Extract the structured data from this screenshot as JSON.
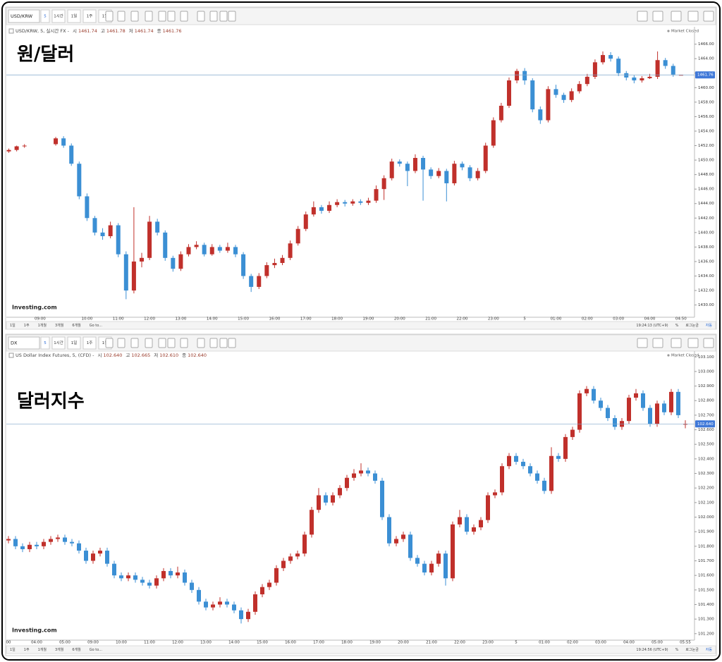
{
  "chart_data": [
    {
      "type": "candlestick",
      "title": "원/달러",
      "symbol": "USD/KRW",
      "toolbar": [
        "5",
        "1시간",
        "1일",
        "1주",
        "1월"
      ],
      "header": "USD/KRW, 5, 실시간 FX -",
      "ohlc_names": [
        "시",
        "고",
        "저",
        "종"
      ],
      "ohlc_labels": [
        "1461.74",
        "1461.78",
        "1461.74",
        "1461.76"
      ],
      "status": "Market Closed",
      "logo": "Investing.com",
      "last_price_label": "1461.76",
      "bottom_left": [
        "1일",
        "1주",
        "1개월",
        "3개월",
        "6개월",
        "Go to..."
      ],
      "bottom_right": [
        "19:24:13 (UTC+9)",
        "%",
        "로그눈금",
        "자동"
      ],
      "up_color": "#c0302b",
      "down_color": "#3b8fd4",
      "categories": [
        null,
        null,
        null,
        null,
        "09:00",
        null,
        null,
        null,
        null,
        null,
        "10:00",
        null,
        null,
        null,
        "11:00",
        null,
        null,
        null,
        "12:00",
        null,
        null,
        null,
        "13:00",
        null,
        null,
        null,
        "14:00",
        null,
        null,
        null,
        "15:00",
        null,
        null,
        null,
        "16:00",
        null,
        null,
        null,
        "17:00",
        null,
        null,
        null,
        "18:00",
        null,
        null,
        null,
        "19:00",
        null,
        null,
        null,
        "20:00",
        null,
        null,
        null,
        "21:00",
        null,
        null,
        null,
        "22:00",
        null,
        null,
        null,
        "23:00",
        null,
        null,
        null,
        "5",
        null,
        null,
        null,
        "01:00",
        null,
        null,
        null,
        "02:00",
        null,
        null,
        null,
        "03:00",
        null,
        null,
        null,
        "04:00",
        null,
        null,
        null,
        "04:50"
      ],
      "open": [
        1451.2,
        1451.4,
        1451.9,
        null,
        null,
        null,
        1452.2,
        1453.0,
        1452.0,
        1449.5,
        1445.0,
        1442.0,
        1440.0,
        1439.5,
        1441.0,
        1437.0,
        1432.0,
        1436.0,
        1436.5,
        1441.5,
        1440.0,
        1436.5,
        1435.0,
        1437.0,
        1438.0,
        1438.3,
        1437.0,
        1438.0,
        1437.5,
        1438.0,
        1437.0,
        1434.0,
        1432.5,
        1434.0,
        1435.5,
        1435.8,
        1436.5,
        1438.5,
        1440.5,
        1442.5,
        1443.5,
        1443.0,
        1443.8,
        1444.2,
        1444.0,
        1444.3,
        1444.1,
        1444.4,
        1446.0,
        1447.5,
        1449.8,
        1449.5,
        1448.5,
        1450.3,
        1448.7,
        1447.8,
        1448.5,
        1446.8,
        1449.5,
        1449.0,
        1447.5,
        1448.5,
        1452.0,
        1455.5,
        1457.5,
        1461.0,
        1462.3,
        1461.0,
        1457.0,
        1455.5,
        1459.8,
        1459.0,
        1458.3,
        1459.5,
        1460.5,
        1461.5,
        1463.5,
        1464.5,
        1464.0,
        1462.0,
        1461.4,
        1461.0,
        1461.3,
        1461.5,
        1463.8,
        1463.0,
        1461.74
      ],
      "high": [
        1451.6,
        1452.0,
        1452.2,
        null,
        null,
        null,
        1453.2,
        1453.3,
        1452.3,
        1449.8,
        1445.4,
        1442.3,
        1440.6,
        1441.5,
        1441.3,
        1437.4,
        1443.5,
        1437.2,
        1442.3,
        1441.9,
        1440.3,
        1436.8,
        1437.4,
        1438.4,
        1438.8,
        1438.6,
        1438.4,
        1438.3,
        1438.6,
        1438.3,
        1437.3,
        1434.3,
        1434.4,
        1435.9,
        1436.4,
        1436.9,
        1438.9,
        1440.9,
        1442.9,
        1444.3,
        1443.8,
        1444.3,
        1444.6,
        1444.5,
        1444.6,
        1444.6,
        1444.8,
        1446.5,
        1447.9,
        1450.2,
        1450.1,
        1449.8,
        1450.8,
        1450.6,
        1449.0,
        1448.9,
        1448.8,
        1449.9,
        1449.8,
        1449.3,
        1448.9,
        1452.4,
        1455.9,
        1457.9,
        1461.4,
        1462.6,
        1462.7,
        1461.3,
        1457.4,
        1460.2,
        1460.4,
        1459.3,
        1459.9,
        1460.9,
        1461.9,
        1463.9,
        1465.0,
        1464.9,
        1464.3,
        1462.3,
        1461.7,
        1461.6,
        1461.9,
        1465.0,
        1464.1,
        1463.3,
        1461.78
      ],
      "low": [
        1451.0,
        1451.2,
        1451.7,
        null,
        null,
        null,
        1452.0,
        1451.7,
        1449.2,
        1444.6,
        1441.6,
        1439.6,
        1439.0,
        1439.2,
        1436.6,
        1430.8,
        1431.6,
        1435.2,
        1436.2,
        1439.6,
        1436.1,
        1434.6,
        1434.7,
        1436.7,
        1437.7,
        1436.7,
        1436.8,
        1437.2,
        1437.2,
        1436.6,
        1433.6,
        1431.8,
        1432.2,
        1433.7,
        1435.1,
        1435.5,
        1436.2,
        1438.2,
        1440.2,
        1442.2,
        1442.6,
        1442.7,
        1443.5,
        1443.6,
        1443.7,
        1443.8,
        1443.8,
        1444.1,
        1444.5,
        1447.2,
        1449.1,
        1446.4,
        1448.2,
        1444.4,
        1447.4,
        1447.5,
        1444.3,
        1446.5,
        1448.6,
        1447.1,
        1447.2,
        1448.2,
        1451.7,
        1455.2,
        1457.2,
        1460.6,
        1460.4,
        1456.6,
        1455.0,
        1455.2,
        1458.6,
        1457.9,
        1458.0,
        1459.2,
        1460.2,
        1461.2,
        1463.2,
        1463.6,
        1461.6,
        1461.0,
        1460.6,
        1460.7,
        1461.2,
        1461.2,
        1462.6,
        1461.5,
        1461.74
      ],
      "close": [
        1451.4,
        1451.9,
        1452.0,
        null,
        null,
        null,
        1453.0,
        1452.0,
        1449.5,
        1445.0,
        1442.0,
        1440.0,
        1439.5,
        1441.0,
        1437.0,
        1432.0,
        1436.0,
        1436.5,
        1441.5,
        1440.0,
        1436.5,
        1435.0,
        1437.0,
        1438.0,
        1438.3,
        1437.0,
        1438.0,
        1437.5,
        1438.0,
        1437.0,
        1434.0,
        1432.5,
        1434.0,
        1435.5,
        1435.8,
        1436.5,
        1438.5,
        1440.5,
        1442.5,
        1443.5,
        1443.0,
        1443.8,
        1444.2,
        1444.0,
        1444.3,
        1444.1,
        1444.4,
        1446.0,
        1447.5,
        1449.8,
        1449.5,
        1448.5,
        1450.3,
        1448.7,
        1447.8,
        1448.5,
        1446.8,
        1449.5,
        1449.0,
        1447.5,
        1448.5,
        1452.0,
        1455.5,
        1457.5,
        1461.0,
        1462.3,
        1461.0,
        1457.0,
        1455.5,
        1459.8,
        1459.0,
        1458.3,
        1459.5,
        1460.5,
        1461.5,
        1463.5,
        1464.5,
        1464.0,
        1462.0,
        1461.4,
        1461.0,
        1461.3,
        1461.5,
        1463.8,
        1463.0,
        1461.8,
        1461.76
      ],
      "ylim": [
        1428.6,
        1468.4
      ],
      "yticks": [
        {
          "value": 1430,
          "label": "1430.00"
        },
        {
          "value": 1432,
          "label": "1432.00"
        },
        {
          "value": 1434,
          "label": "1434.00"
        },
        {
          "value": 1436,
          "label": "1436.00"
        },
        {
          "value": 1438,
          "label": "1438.00"
        },
        {
          "value": 1440,
          "label": "1440.00"
        },
        {
          "value": 1442,
          "label": "1442.00"
        },
        {
          "value": 1444,
          "label": "1444.00"
        },
        {
          "value": 1446,
          "label": "1446.00"
        },
        {
          "value": 1448,
          "label": "1448.00"
        },
        {
          "value": 1450,
          "label": "1450.00"
        },
        {
          "value": 1452,
          "label": "1452.00"
        },
        {
          "value": 1454,
          "label": "1454.00"
        },
        {
          "value": 1456,
          "label": "1456.00"
        },
        {
          "value": 1458,
          "label": "1458.00"
        },
        {
          "value": 1460,
          "label": "1460.00"
        },
        {
          "value": 1462,
          "label": "1462.00"
        },
        {
          "value": 1464,
          "label": "1464.00"
        },
        {
          "value": 1466,
          "label": "1466.00"
        }
      ]
    },
    {
      "type": "candlestick",
      "title": "달러지수",
      "symbol": "DX",
      "toolbar": [
        "5",
        "1시간",
        "1일",
        "1주",
        "1월"
      ],
      "header": "US Dollar Index Futures, 5, (CFD) -",
      "ohlc_names": [
        "시",
        "고",
        "저",
        "종"
      ],
      "ohlc_labels": [
        "102.640",
        "102.665",
        "102.610",
        "102.640"
      ],
      "status": "Market Closed",
      "logo": "Investing.com",
      "last_price_label": "102.640",
      "bottom_left": [
        "1일",
        "1주",
        "1개월",
        "3개월",
        "6개월",
        "Go to..."
      ],
      "bottom_right": [
        "19:24:56 (UTC+9)",
        "%",
        "로그눈금",
        "자동"
      ],
      "up_color": "#c0302b",
      "down_color": "#3b8fd4",
      "categories": [
        "00",
        null,
        null,
        null,
        "04:00",
        null,
        null,
        null,
        "05:00",
        null,
        null,
        null,
        "09:00",
        null,
        null,
        null,
        "10:00",
        null,
        null,
        null,
        "11:00",
        null,
        null,
        null,
        "12:00",
        null,
        null,
        null,
        "13:00",
        null,
        null,
        null,
        "14:00",
        null,
        null,
        null,
        "15:00",
        null,
        null,
        null,
        "16:00",
        null,
        null,
        null,
        "17:00",
        null,
        null,
        null,
        "18:00",
        null,
        null,
        null,
        "19:00",
        null,
        null,
        null,
        "20:00",
        null,
        null,
        null,
        "21:00",
        null,
        null,
        null,
        "22:00",
        null,
        null,
        null,
        "23:00",
        null,
        null,
        null,
        "5",
        null,
        null,
        null,
        "01:00",
        null,
        null,
        null,
        "02:00",
        null,
        null,
        null,
        "03:00",
        null,
        null,
        null,
        "04:00",
        null,
        null,
        null,
        "05:00",
        null,
        null,
        null,
        "05:55"
      ],
      "open": [
        101.84,
        101.85,
        101.8,
        101.78,
        101.81,
        101.8,
        101.83,
        101.85,
        101.86,
        101.83,
        101.82,
        101.77,
        101.7,
        101.75,
        101.77,
        101.68,
        101.6,
        101.58,
        101.6,
        101.57,
        101.55,
        101.53,
        101.58,
        101.63,
        101.6,
        101.62,
        101.55,
        101.5,
        101.42,
        101.38,
        101.4,
        101.42,
        101.4,
        101.36,
        101.3,
        101.35,
        101.47,
        101.52,
        101.55,
        101.65,
        101.7,
        101.73,
        101.75,
        101.88,
        102.05,
        102.15,
        102.1,
        102.15,
        102.2,
        102.27,
        102.3,
        102.32,
        102.3,
        102.25,
        102.0,
        101.82,
        101.85,
        101.88,
        101.72,
        101.68,
        101.62,
        101.68,
        101.75,
        101.58,
        101.95,
        102.0,
        101.9,
        101.93,
        101.98,
        102.15,
        102.17,
        102.35,
        102.42,
        102.38,
        102.35,
        102.3,
        102.25,
        102.18,
        102.42,
        102.4,
        102.55,
        102.6,
        102.85,
        102.88,
        102.8,
        102.75,
        102.68,
        102.62,
        102.66,
        102.82,
        102.85,
        102.75,
        102.64,
        102.78,
        102.72,
        102.86,
        102.64
      ],
      "high": [
        101.87,
        101.87,
        101.82,
        101.83,
        101.83,
        101.85,
        101.87,
        101.88,
        101.88,
        101.85,
        101.84,
        101.79,
        101.77,
        101.79,
        101.79,
        101.7,
        101.62,
        101.62,
        101.62,
        101.59,
        101.57,
        101.6,
        101.65,
        101.65,
        101.66,
        101.64,
        101.57,
        101.52,
        101.44,
        101.42,
        101.45,
        101.44,
        101.42,
        101.38,
        101.37,
        101.49,
        101.54,
        101.57,
        101.67,
        101.72,
        101.75,
        101.77,
        101.9,
        102.07,
        102.2,
        102.17,
        102.17,
        102.22,
        102.29,
        102.33,
        102.37,
        102.34,
        102.32,
        102.27,
        102.02,
        101.87,
        101.9,
        101.9,
        101.74,
        101.7,
        101.7,
        101.77,
        101.77,
        101.97,
        102.05,
        102.02,
        101.95,
        102.0,
        102.17,
        102.19,
        102.37,
        102.44,
        102.44,
        102.4,
        102.37,
        102.32,
        102.27,
        102.48,
        102.44,
        102.57,
        102.62,
        102.87,
        102.9,
        102.9,
        102.82,
        102.77,
        102.7,
        102.68,
        102.84,
        102.88,
        102.87,
        102.77,
        102.8,
        102.8,
        102.88,
        102.88,
        102.665
      ],
      "low": [
        101.82,
        101.78,
        101.76,
        101.76,
        101.78,
        101.78,
        101.81,
        101.83,
        101.81,
        101.8,
        101.75,
        101.68,
        101.68,
        101.73,
        101.66,
        101.58,
        101.56,
        101.56,
        101.55,
        101.53,
        101.51,
        101.51,
        101.56,
        101.58,
        101.58,
        101.53,
        101.48,
        101.4,
        101.36,
        101.36,
        101.38,
        101.38,
        101.34,
        101.27,
        101.28,
        101.33,
        101.45,
        101.5,
        101.53,
        101.63,
        101.68,
        101.71,
        101.73,
        101.86,
        102.03,
        102.08,
        102.08,
        102.13,
        102.18,
        102.25,
        102.28,
        102.28,
        102.23,
        101.98,
        101.8,
        101.8,
        101.83,
        101.7,
        101.66,
        101.6,
        101.6,
        101.66,
        101.53,
        101.56,
        101.93,
        101.88,
        101.88,
        101.91,
        101.96,
        102.13,
        102.15,
        102.33,
        102.36,
        102.33,
        102.28,
        102.23,
        102.16,
        102.16,
        102.38,
        102.38,
        102.53,
        102.58,
        102.83,
        102.78,
        102.73,
        102.66,
        102.6,
        102.6,
        102.64,
        102.8,
        102.73,
        102.62,
        102.62,
        102.7,
        102.7,
        102.68,
        102.61
      ],
      "close": [
        101.85,
        101.8,
        101.78,
        101.81,
        101.8,
        101.83,
        101.85,
        101.86,
        101.83,
        101.82,
        101.77,
        101.7,
        101.75,
        101.77,
        101.68,
        101.6,
        101.58,
        101.6,
        101.57,
        101.55,
        101.53,
        101.58,
        101.63,
        101.6,
        101.62,
        101.55,
        101.5,
        101.42,
        101.38,
        101.4,
        101.42,
        101.4,
        101.36,
        101.3,
        101.35,
        101.47,
        101.52,
        101.55,
        101.65,
        101.7,
        101.73,
        101.75,
        101.88,
        102.05,
        102.15,
        102.1,
        102.15,
        102.2,
        102.27,
        102.3,
        102.32,
        102.3,
        102.25,
        102.0,
        101.82,
        101.85,
        101.88,
        101.72,
        101.68,
        101.62,
        101.68,
        101.75,
        101.58,
        101.95,
        102.0,
        101.9,
        101.93,
        101.98,
        102.15,
        102.17,
        102.35,
        102.42,
        102.38,
        102.35,
        102.3,
        102.25,
        102.18,
        102.42,
        102.4,
        102.55,
        102.6,
        102.85,
        102.88,
        102.8,
        102.75,
        102.68,
        102.62,
        102.66,
        102.82,
        102.85,
        102.75,
        102.64,
        102.78,
        102.72,
        102.86,
        102.7,
        102.64
      ],
      "ylim": [
        101.17,
        103.14
      ],
      "yticks": [
        {
          "value": 101.2,
          "label": "101.200"
        },
        {
          "value": 101.3,
          "label": "101.300"
        },
        {
          "value": 101.4,
          "label": "101.400"
        },
        {
          "value": 101.5,
          "label": "101.500"
        },
        {
          "value": 101.6,
          "label": "101.600"
        },
        {
          "value": 101.7,
          "label": "101.700"
        },
        {
          "value": 101.8,
          "label": "101.800"
        },
        {
          "value": 101.9,
          "label": "101.900"
        },
        {
          "value": 102.0,
          "label": "102.000"
        },
        {
          "value": 102.1,
          "label": "102.100"
        },
        {
          "value": 102.2,
          "label": "102.200"
        },
        {
          "value": 102.3,
          "label": "102.300"
        },
        {
          "value": 102.4,
          "label": "102.400"
        },
        {
          "value": 102.5,
          "label": "102.500"
        },
        {
          "value": 102.6,
          "label": "102.600"
        },
        {
          "value": 102.7,
          "label": "102.700"
        },
        {
          "value": 102.8,
          "label": "102.800"
        },
        {
          "value": 102.9,
          "label": "102.900"
        },
        {
          "value": 103.0,
          "label": "103.000"
        },
        {
          "value": 103.1,
          "label": "103.100"
        }
      ]
    }
  ]
}
